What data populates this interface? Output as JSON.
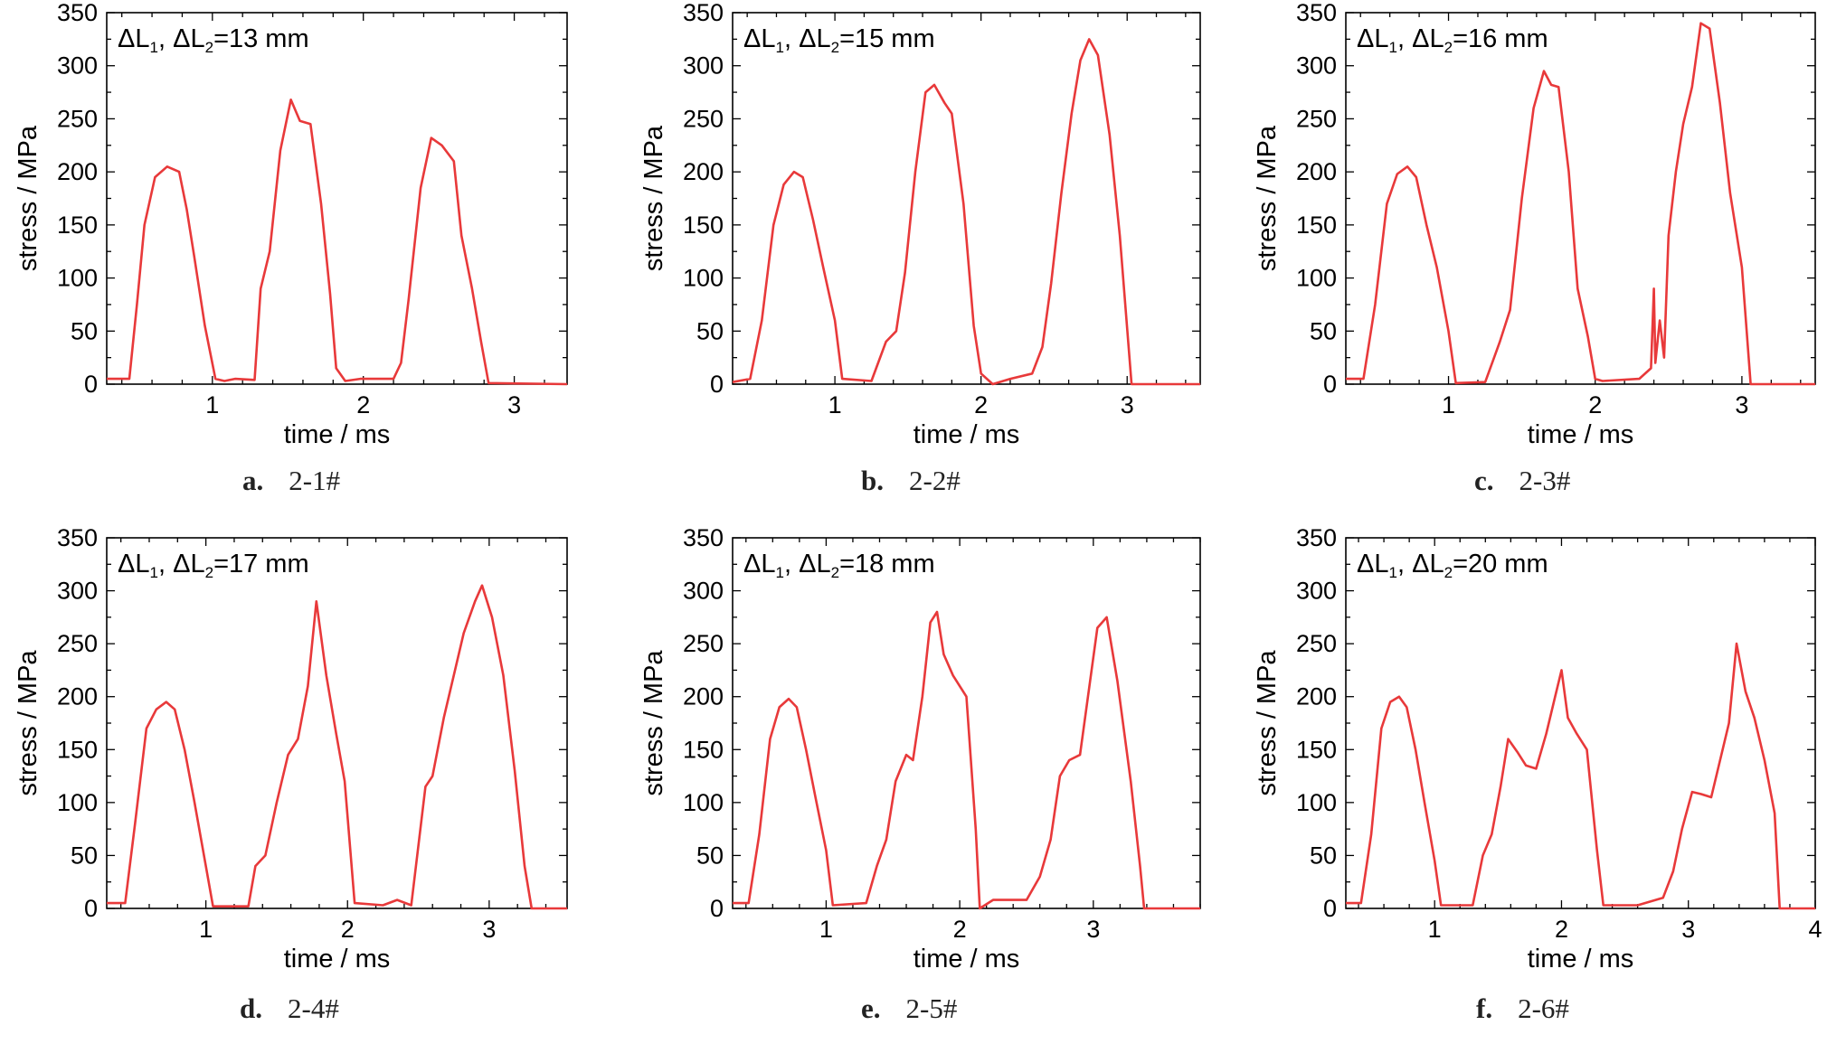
{
  "chart_data": [
    {
      "type": "line",
      "annotation": {
        "p1": "ΔL",
        "s1": "1",
        "p2": ", ΔL",
        "s2": "2",
        "p3": "=13 mm"
      },
      "xlabel": "time / ms",
      "ylabel": "stress / MPa",
      "xlim": [
        0.3,
        3.35
      ],
      "ylim": [
        0,
        350
      ],
      "xticks": [
        1,
        2,
        3
      ],
      "yticks": [
        0,
        50,
        100,
        150,
        200,
        250,
        300,
        350
      ],
      "caption_letter": "a.",
      "caption_text": "2-1#",
      "series": [
        {
          "color": "#e8393a",
          "x": [
            0.3,
            0.45,
            0.5,
            0.55,
            0.62,
            0.7,
            0.78,
            0.83,
            0.88,
            0.95,
            1.02,
            1.08,
            1.15,
            1.28,
            1.32,
            1.38,
            1.45,
            1.52,
            1.58,
            1.65,
            1.72,
            1.78,
            1.82,
            1.88,
            1.98,
            2.2,
            2.25,
            2.3,
            2.38,
            2.45,
            2.52,
            2.6,
            2.65,
            2.72,
            2.78,
            2.83,
            3.35
          ],
          "y": [
            5,
            5,
            75,
            150,
            195,
            205,
            200,
            165,
            120,
            55,
            5,
            3,
            5,
            4,
            90,
            125,
            220,
            268,
            248,
            245,
            170,
            85,
            15,
            3,
            5,
            5,
            20,
            80,
            185,
            232,
            225,
            210,
            140,
            90,
            40,
            1,
            0
          ]
        }
      ]
    },
    {
      "type": "line",
      "annotation": {
        "p1": "ΔL",
        "s1": "1",
        "p2": ", ΔL",
        "s2": "2",
        "p3": "=15 mm"
      },
      "xlabel": "time / ms",
      "ylabel": "stress / MPa",
      "xlim": [
        0.3,
        3.5
      ],
      "ylim": [
        0,
        350
      ],
      "xticks": [
        1,
        2,
        3
      ],
      "yticks": [
        0,
        50,
        100,
        150,
        200,
        250,
        300,
        350
      ],
      "caption_letter": "b.",
      "caption_text": "2-2#",
      "series": [
        {
          "color": "#e8393a",
          "x": [
            0.3,
            0.42,
            0.5,
            0.58,
            0.65,
            0.72,
            0.78,
            0.85,
            0.92,
            1.0,
            1.05,
            1.25,
            1.35,
            1.42,
            1.48,
            1.55,
            1.62,
            1.68,
            1.75,
            1.8,
            1.88,
            1.95,
            2.0,
            2.08,
            2.2,
            2.35,
            2.42,
            2.48,
            2.55,
            2.62,
            2.68,
            2.74,
            2.8,
            2.88,
            2.95,
            3.03,
            3.5
          ],
          "y": [
            2,
            5,
            60,
            150,
            188,
            200,
            195,
            155,
            110,
            60,
            5,
            3,
            40,
            50,
            105,
            200,
            275,
            282,
            265,
            255,
            170,
            55,
            10,
            0,
            5,
            10,
            35,
            95,
            180,
            255,
            305,
            325,
            310,
            235,
            140,
            0,
            0
          ]
        }
      ]
    },
    {
      "type": "line",
      "annotation": {
        "p1": "ΔL",
        "s1": "1",
        "p2": ", ΔL",
        "s2": "2",
        "p3": "=16 mm"
      },
      "xlabel": "time / ms",
      "ylabel": "stress / MPa",
      "xlim": [
        0.3,
        3.5
      ],
      "ylim": [
        0,
        350
      ],
      "xticks": [
        1,
        2,
        3
      ],
      "yticks": [
        0,
        50,
        100,
        150,
        200,
        250,
        300,
        350
      ],
      "caption_letter": "c.",
      "caption_text": "2-3#",
      "series": [
        {
          "color": "#e8393a",
          "x": [
            0.3,
            0.42,
            0.5,
            0.58,
            0.65,
            0.72,
            0.78,
            0.85,
            0.92,
            1.0,
            1.05,
            1.25,
            1.35,
            1.42,
            1.5,
            1.58,
            1.65,
            1.7,
            1.75,
            1.82,
            1.88,
            1.95,
            2.0,
            2.05,
            2.3,
            2.38,
            2.4,
            2.41,
            2.44,
            2.47,
            2.5,
            2.55,
            2.6,
            2.66,
            2.72,
            2.78,
            2.85,
            2.92,
            3.0,
            3.06,
            3.5
          ],
          "y": [
            5,
            5,
            75,
            170,
            198,
            205,
            195,
            150,
            110,
            50,
            1,
            2,
            40,
            70,
            175,
            260,
            295,
            282,
            280,
            200,
            90,
            45,
            5,
            3,
            5,
            15,
            90,
            20,
            60,
            25,
            140,
            200,
            245,
            280,
            340,
            335,
            265,
            180,
            110,
            0,
            0
          ]
        }
      ]
    },
    {
      "type": "line",
      "annotation": {
        "p1": "ΔL",
        "s1": "1",
        "p2": ", ΔL",
        "s2": "2",
        "p3": "=17 mm"
      },
      "xlabel": "time / ms",
      "ylabel": "stress / MPa",
      "xlim": [
        0.3,
        3.55
      ],
      "ylim": [
        0,
        350
      ],
      "xticks": [
        1,
        2,
        3
      ],
      "yticks": [
        0,
        50,
        100,
        150,
        200,
        250,
        300,
        350
      ],
      "caption_letter": "d.",
      "caption_text": "2-4#",
      "series": [
        {
          "color": "#e8393a",
          "x": [
            0.3,
            0.43,
            0.5,
            0.58,
            0.65,
            0.72,
            0.78,
            0.85,
            0.92,
            1.0,
            1.05,
            1.3,
            1.35,
            1.42,
            1.5,
            1.58,
            1.65,
            1.72,
            1.78,
            1.85,
            1.92,
            1.98,
            2.05,
            2.25,
            2.35,
            2.45,
            2.55,
            2.6,
            2.68,
            2.75,
            2.82,
            2.9,
            2.95,
            3.02,
            3.1,
            3.18,
            3.25,
            3.3,
            3.55
          ],
          "y": [
            5,
            5,
            80,
            170,
            188,
            195,
            188,
            150,
            100,
            40,
            2,
            2,
            40,
            50,
            100,
            145,
            160,
            210,
            290,
            220,
            165,
            120,
            5,
            3,
            8,
            3,
            115,
            125,
            180,
            220,
            260,
            290,
            305,
            275,
            220,
            130,
            40,
            0,
            0
          ]
        }
      ]
    },
    {
      "type": "line",
      "annotation": {
        "p1": "ΔL",
        "s1": "1",
        "p2": ", ΔL",
        "s2": "2",
        "p3": "=18 mm"
      },
      "xlabel": "time / ms",
      "ylabel": "stress / MPa",
      "xlim": [
        0.3,
        3.8
      ],
      "ylim": [
        0,
        350
      ],
      "xticks": [
        1,
        2,
        3
      ],
      "yticks": [
        0,
        50,
        100,
        150,
        200,
        250,
        300,
        350
      ],
      "caption_letter": "e.",
      "caption_text": "2-5#",
      "series": [
        {
          "color": "#e8393a",
          "x": [
            0.3,
            0.42,
            0.5,
            0.58,
            0.65,
            0.72,
            0.78,
            0.85,
            0.92,
            1.0,
            1.05,
            1.3,
            1.38,
            1.45,
            1.52,
            1.6,
            1.65,
            1.72,
            1.78,
            1.83,
            1.88,
            1.95,
            2.05,
            2.12,
            2.15,
            2.25,
            2.5,
            2.6,
            2.68,
            2.75,
            2.82,
            2.9,
            2.96,
            3.03,
            3.1,
            3.18,
            3.28,
            3.35,
            3.38,
            3.8
          ],
          "y": [
            5,
            5,
            70,
            160,
            190,
            198,
            190,
            150,
            105,
            55,
            3,
            5,
            40,
            65,
            120,
            145,
            140,
            200,
            270,
            280,
            240,
            220,
            200,
            75,
            0,
            8,
            8,
            30,
            65,
            125,
            140,
            145,
            200,
            265,
            275,
            215,
            120,
            40,
            0,
            0
          ]
        }
      ]
    },
    {
      "type": "line",
      "annotation": {
        "p1": "ΔL",
        "s1": "1",
        "p2": ", ΔL",
        "s2": "2",
        "p3": "=20 mm"
      },
      "xlabel": "time / ms",
      "ylabel": "stress / MPa",
      "xlim": [
        0.3,
        4.0
      ],
      "ylim": [
        0,
        350
      ],
      "xticks": [
        1,
        2,
        3,
        4
      ],
      "yticks": [
        0,
        50,
        100,
        150,
        200,
        250,
        300,
        350
      ],
      "caption_letter": "f.",
      "caption_text": "2-6#",
      "series": [
        {
          "color": "#e8393a",
          "x": [
            0.3,
            0.42,
            0.5,
            0.58,
            0.65,
            0.72,
            0.78,
            0.85,
            0.92,
            1.0,
            1.05,
            1.3,
            1.38,
            1.45,
            1.52,
            1.58,
            1.65,
            1.72,
            1.8,
            1.88,
            1.95,
            2.0,
            2.05,
            2.12,
            2.2,
            2.28,
            2.33,
            2.6,
            2.8,
            2.88,
            2.95,
            3.03,
            3.1,
            3.18,
            3.25,
            3.32,
            3.38,
            3.45,
            3.52,
            3.6,
            3.68,
            3.72,
            4.0
          ],
          "y": [
            5,
            5,
            70,
            170,
            195,
            200,
            190,
            150,
            100,
            45,
            3,
            3,
            50,
            70,
            115,
            160,
            148,
            135,
            132,
            165,
            200,
            225,
            180,
            165,
            150,
            55,
            3,
            3,
            10,
            35,
            75,
            110,
            108,
            105,
            140,
            175,
            250,
            205,
            180,
            140,
            90,
            0,
            0
          ]
        }
      ]
    }
  ]
}
